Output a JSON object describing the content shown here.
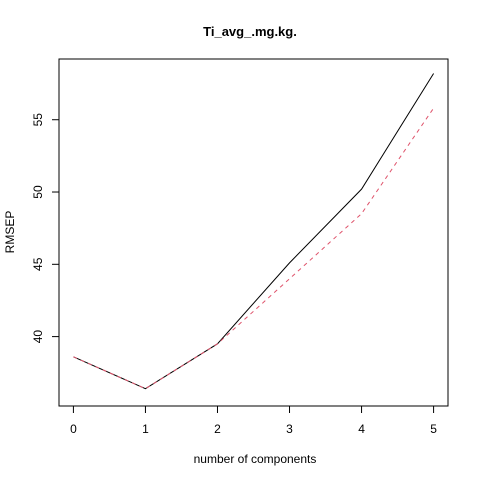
{
  "chart_data": {
    "type": "line",
    "title": "Ti_avg_.mg.kg.",
    "xlabel": "number of components",
    "ylabel": "RMSEP",
    "x": [
      0,
      1,
      2,
      3,
      4,
      5
    ],
    "xticks": [
      "0",
      "1",
      "2",
      "3",
      "4",
      "5"
    ],
    "yticks": [
      "40",
      "45",
      "50",
      "55"
    ],
    "xlim": [
      -0.2,
      5.2
    ],
    "ylim": [
      35.2,
      59.2
    ],
    "grid": false,
    "series": [
      {
        "values": [
          38.6,
          36.4,
          39.5,
          45.1,
          50.2,
          58.2
        ],
        "color": "#000000",
        "dash": "solid"
      },
      {
        "values": [
          38.6,
          36.4,
          39.5,
          44.0,
          48.5,
          55.8
        ],
        "color": "#DF536B",
        "dash": "dashed"
      }
    ]
  }
}
